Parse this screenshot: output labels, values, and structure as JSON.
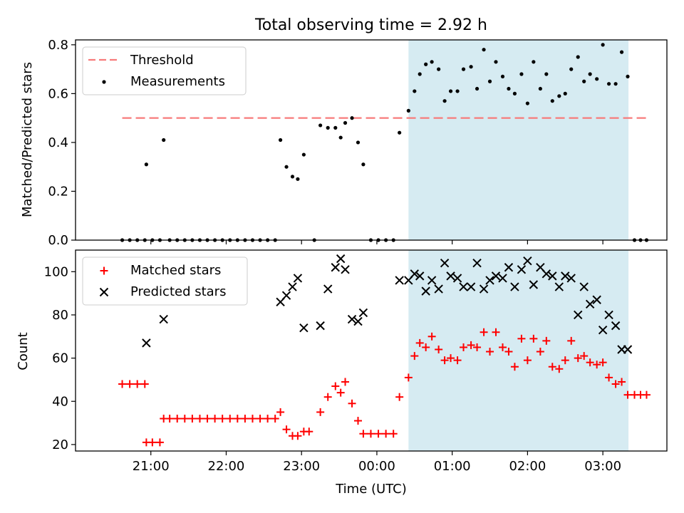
{
  "figure": {
    "title": "Total observing time = 2.92 h"
  },
  "colors": {
    "threshold": "#f77b7b",
    "measurement": "#000000",
    "matched": "#ff0000",
    "predicted": "#000000",
    "shade": "#add8e6",
    "shade_opacity": 0.5
  },
  "chart_data": [
    {
      "type": "scatter",
      "panel": "top",
      "ylabel": "Matched/Predicted stars",
      "ylim": [
        0,
        0.82
      ],
      "xlim_hours": [
        20.0,
        27.85
      ],
      "x_unit": "hours UTC (values >24 are after midnight)",
      "yticks": [
        0.0,
        0.2,
        0.4,
        0.6,
        0.8
      ],
      "ytick_labels": [
        "0.0",
        "0.2",
        "0.4",
        "0.6",
        "0.8"
      ],
      "legend_position": "upper left",
      "shaded_span_hours": [
        24.42,
        27.34
      ],
      "threshold": {
        "name": "Threshold",
        "style": "dashed",
        "y": 0.5,
        "x_range": [
          20.62,
          27.62
        ]
      },
      "series": [
        {
          "name": "Measurements",
          "points": [
            [
              20.62,
              0
            ],
            [
              20.72,
              0
            ],
            [
              20.82,
              0
            ],
            [
              20.92,
              0
            ],
            [
              20.94,
              0.31
            ],
            [
              21.02,
              0
            ],
            [
              21.12,
              0
            ],
            [
              21.17,
              0.41
            ],
            [
              21.25,
              0
            ],
            [
              21.35,
              0
            ],
            [
              21.45,
              0
            ],
            [
              21.55,
              0
            ],
            [
              21.65,
              0
            ],
            [
              21.75,
              0
            ],
            [
              21.85,
              0
            ],
            [
              21.95,
              0
            ],
            [
              22.05,
              0
            ],
            [
              22.15,
              0
            ],
            [
              22.25,
              0
            ],
            [
              22.35,
              0
            ],
            [
              22.45,
              0
            ],
            [
              22.55,
              0
            ],
            [
              22.65,
              0
            ],
            [
              22.72,
              0.41
            ],
            [
              22.8,
              0.3
            ],
            [
              22.88,
              0.26
            ],
            [
              22.95,
              0.25
            ],
            [
              23.03,
              0.35
            ],
            [
              23.17,
              0
            ],
            [
              23.25,
              0.47
            ],
            [
              23.35,
              0.46
            ],
            [
              23.45,
              0.46
            ],
            [
              23.52,
              0.42
            ],
            [
              23.58,
              0.48
            ],
            [
              23.67,
              0.5
            ],
            [
              23.75,
              0.4
            ],
            [
              23.82,
              0.31
            ],
            [
              23.92,
              0
            ],
            [
              24.02,
              0
            ],
            [
              24.12,
              0
            ],
            [
              24.22,
              0
            ],
            [
              24.3,
              0.44
            ],
            [
              24.42,
              0.53
            ],
            [
              24.5,
              0.61
            ],
            [
              24.57,
              0.68
            ],
            [
              24.65,
              0.72
            ],
            [
              24.73,
              0.73
            ],
            [
              24.82,
              0.7
            ],
            [
              24.9,
              0.57
            ],
            [
              24.98,
              0.61
            ],
            [
              25.07,
              0.61
            ],
            [
              25.15,
              0.7
            ],
            [
              25.25,
              0.71
            ],
            [
              25.33,
              0.62
            ],
            [
              25.42,
              0.78
            ],
            [
              25.5,
              0.65
            ],
            [
              25.58,
              0.73
            ],
            [
              25.67,
              0.67
            ],
            [
              25.75,
              0.62
            ],
            [
              25.83,
              0.6
            ],
            [
              25.92,
              0.68
            ],
            [
              26.0,
              0.56
            ],
            [
              26.08,
              0.73
            ],
            [
              26.17,
              0.62
            ],
            [
              26.25,
              0.68
            ],
            [
              26.33,
              0.57
            ],
            [
              26.42,
              0.59
            ],
            [
              26.5,
              0.6
            ],
            [
              26.58,
              0.7
            ],
            [
              26.67,
              0.75
            ],
            [
              26.75,
              0.65
            ],
            [
              26.83,
              0.68
            ],
            [
              26.92,
              0.66
            ],
            [
              27.0,
              0.8
            ],
            [
              27.08,
              0.64
            ],
            [
              27.17,
              0.64
            ],
            [
              27.25,
              0.77
            ],
            [
              27.33,
              0.67
            ],
            [
              27.42,
              0
            ],
            [
              27.5,
              0
            ],
            [
              27.58,
              0
            ]
          ]
        }
      ]
    },
    {
      "type": "scatter",
      "panel": "bottom",
      "ylabel": "Count",
      "xlabel": "Time (UTC)",
      "ylim": [
        17,
        110
      ],
      "xlim_hours": [
        20.0,
        27.85
      ],
      "yticks": [
        20,
        40,
        60,
        80,
        100
      ],
      "ytick_labels": [
        "20",
        "40",
        "60",
        "80",
        "100"
      ],
      "xticks_hours": [
        21,
        22,
        23,
        24,
        25,
        26,
        27
      ],
      "xtick_labels": [
        "21:00",
        "22:00",
        "23:00",
        "00:00",
        "01:00",
        "02:00",
        "03:00"
      ],
      "legend_position": "upper left",
      "shaded_span_hours": [
        24.42,
        27.34
      ],
      "series": [
        {
          "name": "Matched stars",
          "marker": "plus",
          "points": [
            [
              20.62,
              48
            ],
            [
              20.72,
              48
            ],
            [
              20.82,
              48
            ],
            [
              20.92,
              48
            ],
            [
              20.94,
              21
            ],
            [
              21.02,
              21
            ],
            [
              21.12,
              21
            ],
            [
              21.17,
              32
            ],
            [
              21.25,
              32
            ],
            [
              21.35,
              32
            ],
            [
              21.45,
              32
            ],
            [
              21.55,
              32
            ],
            [
              21.65,
              32
            ],
            [
              21.75,
              32
            ],
            [
              21.85,
              32
            ],
            [
              21.95,
              32
            ],
            [
              22.05,
              32
            ],
            [
              22.15,
              32
            ],
            [
              22.25,
              32
            ],
            [
              22.35,
              32
            ],
            [
              22.45,
              32
            ],
            [
              22.55,
              32
            ],
            [
              22.65,
              32
            ],
            [
              22.72,
              35
            ],
            [
              22.8,
              27
            ],
            [
              22.88,
              24
            ],
            [
              22.95,
              24
            ],
            [
              23.03,
              26
            ],
            [
              23.1,
              26
            ],
            [
              23.25,
              35
            ],
            [
              23.35,
              42
            ],
            [
              23.45,
              47
            ],
            [
              23.52,
              44
            ],
            [
              23.58,
              49
            ],
            [
              23.67,
              39
            ],
            [
              23.75,
              31
            ],
            [
              23.82,
              25
            ],
            [
              23.92,
              25
            ],
            [
              24.02,
              25
            ],
            [
              24.12,
              25
            ],
            [
              24.22,
              25
            ],
            [
              24.3,
              42
            ],
            [
              24.42,
              51
            ],
            [
              24.5,
              61
            ],
            [
              24.57,
              67
            ],
            [
              24.65,
              65
            ],
            [
              24.73,
              70
            ],
            [
              24.82,
              64
            ],
            [
              24.9,
              59
            ],
            [
              24.98,
              60
            ],
            [
              25.07,
              59
            ],
            [
              25.15,
              65
            ],
            [
              25.25,
              66
            ],
            [
              25.33,
              65
            ],
            [
              25.42,
              72
            ],
            [
              25.5,
              63
            ],
            [
              25.58,
              72
            ],
            [
              25.67,
              65
            ],
            [
              25.75,
              63
            ],
            [
              25.83,
              56
            ],
            [
              25.92,
              69
            ],
            [
              26.0,
              59
            ],
            [
              26.08,
              69
            ],
            [
              26.17,
              63
            ],
            [
              26.25,
              68
            ],
            [
              26.33,
              56
            ],
            [
              26.42,
              55
            ],
            [
              26.5,
              59
            ],
            [
              26.58,
              68
            ],
            [
              26.67,
              60
            ],
            [
              26.75,
              61
            ],
            [
              26.83,
              58
            ],
            [
              26.92,
              57
            ],
            [
              27.0,
              58
            ],
            [
              27.08,
              51
            ],
            [
              27.17,
              48
            ],
            [
              27.25,
              49
            ],
            [
              27.33,
              43
            ],
            [
              27.42,
              43
            ],
            [
              27.5,
              43
            ],
            [
              27.58,
              43
            ]
          ]
        },
        {
          "name": "Predicted stars",
          "marker": "x",
          "points": [
            [
              20.94,
              67
            ],
            [
              21.17,
              78
            ],
            [
              22.72,
              86
            ],
            [
              22.8,
              89
            ],
            [
              22.88,
              93
            ],
            [
              22.95,
              97
            ],
            [
              23.03,
              74
            ],
            [
              23.25,
              75
            ],
            [
              23.35,
              92
            ],
            [
              23.45,
              102
            ],
            [
              23.52,
              106
            ],
            [
              23.58,
              101
            ],
            [
              23.67,
              78
            ],
            [
              23.75,
              77
            ],
            [
              23.82,
              81
            ],
            [
              24.3,
              96
            ],
            [
              24.42,
              96
            ],
            [
              24.5,
              99
            ],
            [
              24.57,
              98
            ],
            [
              24.65,
              91
            ],
            [
              24.73,
              96
            ],
            [
              24.82,
              92
            ],
            [
              24.9,
              104
            ],
            [
              24.98,
              98
            ],
            [
              25.07,
              97
            ],
            [
              25.15,
              93
            ],
            [
              25.25,
              93
            ],
            [
              25.33,
              104
            ],
            [
              25.42,
              92
            ],
            [
              25.5,
              96
            ],
            [
              25.58,
              98
            ],
            [
              25.67,
              97
            ],
            [
              25.75,
              102
            ],
            [
              25.83,
              93
            ],
            [
              25.92,
              101
            ],
            [
              26.0,
              105
            ],
            [
              26.08,
              94
            ],
            [
              26.17,
              102
            ],
            [
              26.25,
              99
            ],
            [
              26.33,
              98
            ],
            [
              26.42,
              93
            ],
            [
              26.5,
              98
            ],
            [
              26.58,
              97
            ],
            [
              26.67,
              80
            ],
            [
              26.75,
              93
            ],
            [
              26.83,
              85
            ],
            [
              26.92,
              87
            ],
            [
              27.0,
              73
            ],
            [
              27.08,
              80
            ],
            [
              27.17,
              75
            ],
            [
              27.25,
              64
            ],
            [
              27.33,
              64
            ]
          ]
        }
      ]
    }
  ]
}
